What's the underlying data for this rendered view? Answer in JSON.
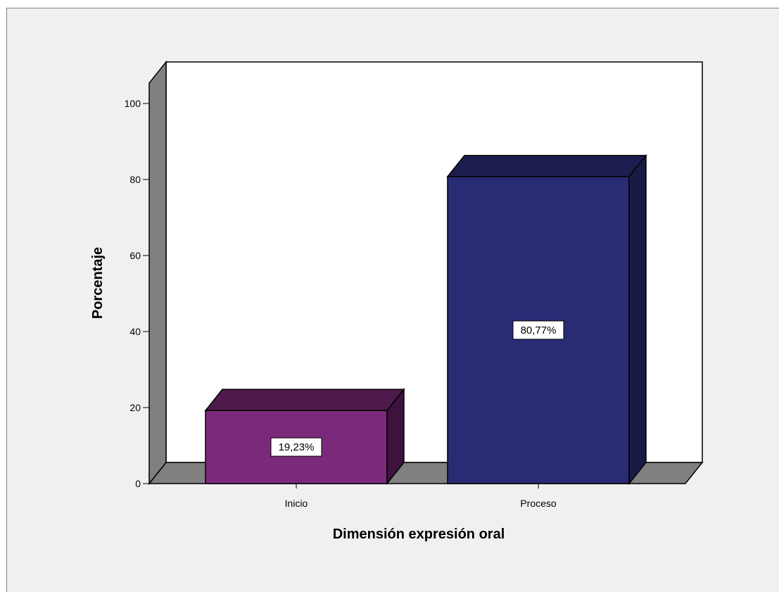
{
  "chart_data": {
    "type": "bar",
    "title": "",
    "xlabel": "Dimensión expresión oral",
    "ylabel": "Porcentaje",
    "categories": [
      "Inicio",
      "Proceso"
    ],
    "values": [
      19.23,
      80.77
    ],
    "data_labels": [
      "19,23%",
      "80,77%"
    ],
    "y_ticks": [
      "0",
      "20",
      "40",
      "60",
      "80",
      "100"
    ],
    "ylim": [
      0,
      100
    ],
    "grid": false,
    "legend": "none",
    "three_d": true,
    "colors": {
      "bars": [
        "#7b2a7b",
        "#292b74"
      ],
      "bar_tops": [
        "#4e1a4c",
        "#1c1d4e"
      ],
      "bar_sides": [
        "#3d123c",
        "#1a1b45"
      ],
      "floor": "#808080",
      "wall": "#808080",
      "plot_bg": "#ffffff",
      "frame_bg": "#f0f0f0"
    }
  }
}
